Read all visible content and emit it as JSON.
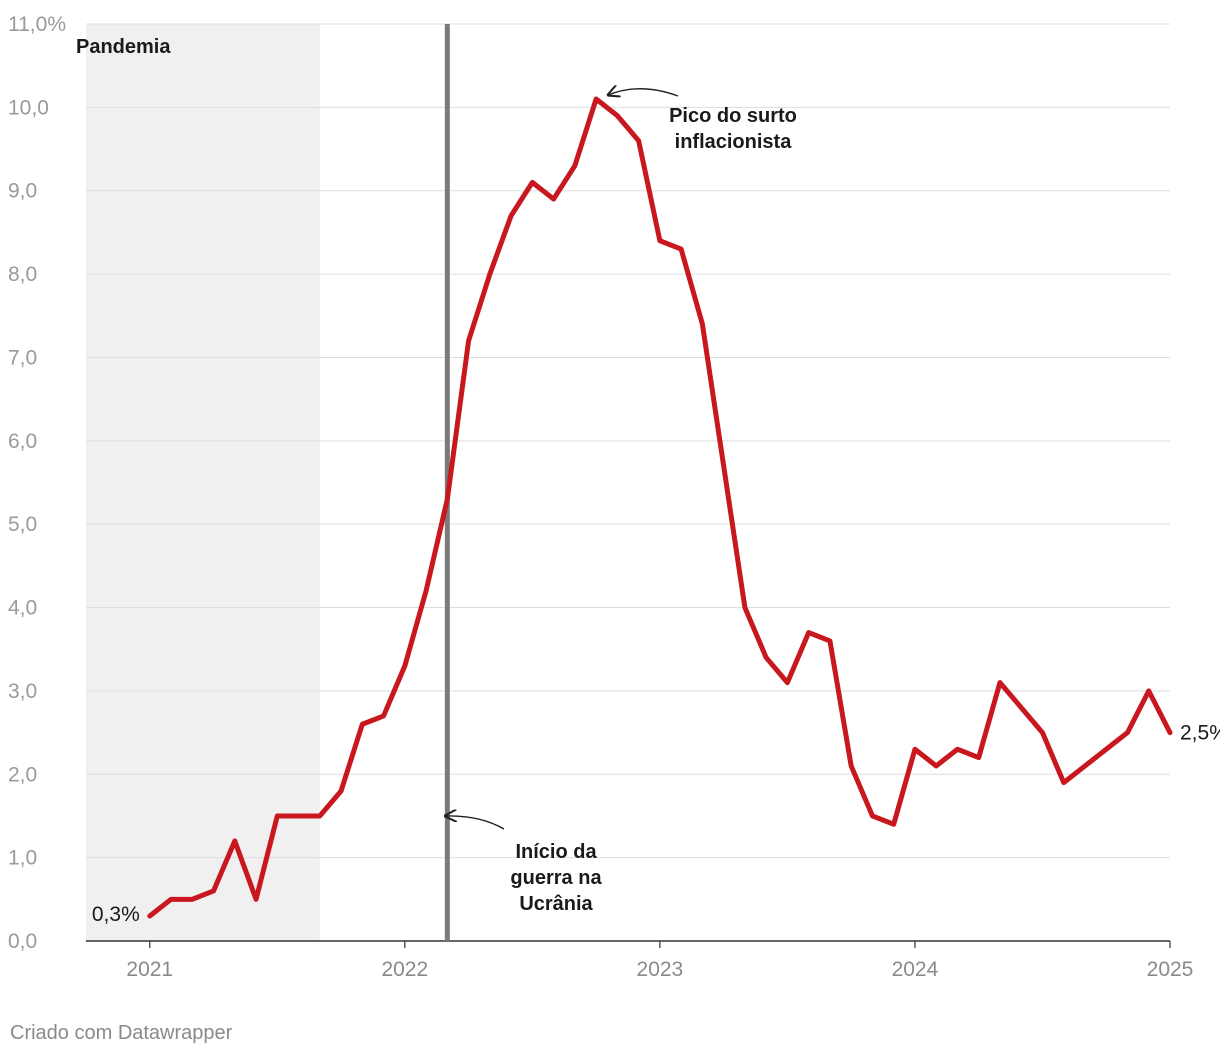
{
  "chart_data": {
    "type": "line",
    "title": "",
    "xlabel": "",
    "ylabel": "",
    "ylim": [
      0,
      11
    ],
    "xlim": [
      "2020-10",
      "2025-01"
    ],
    "yticks": [
      0,
      1,
      2,
      3,
      4,
      5,
      6,
      7,
      8,
      9,
      10,
      11
    ],
    "ytick_labels": [
      "0,0",
      "1,0",
      "2,0",
      "3,0",
      "4,0",
      "5,0",
      "6,0",
      "7,0",
      "8,0",
      "9,0",
      "10,0",
      "11,0%"
    ],
    "xticks": [
      "2021",
      "2022",
      "2023",
      "2024",
      "2025"
    ],
    "grid": true,
    "line_color": "#c8171e",
    "series": [
      {
        "x": [
          "2021-01",
          "2021-02",
          "2021-03",
          "2021-04",
          "2021-05",
          "2021-06",
          "2021-07",
          "2021-08",
          "2021-09",
          "2021-10",
          "2021-11",
          "2021-12",
          "2022-01",
          "2022-02",
          "2022-03",
          "2022-04",
          "2022-05",
          "2022-06",
          "2022-07",
          "2022-08",
          "2022-09",
          "2022-10",
          "2022-11",
          "2022-12",
          "2023-01",
          "2023-02",
          "2023-03",
          "2023-04",
          "2023-05",
          "2023-06",
          "2023-07",
          "2023-08",
          "2023-09",
          "2023-10",
          "2023-11",
          "2023-12",
          "2024-01",
          "2024-02",
          "2024-03",
          "2024-04",
          "2024-05",
          "2024-06",
          "2024-07",
          "2024-08",
          "2024-09",
          "2024-10",
          "2024-11",
          "2024-12"
        ],
        "values": [
          0.3,
          0.5,
          0.5,
          0.6,
          1.2,
          0.5,
          1.5,
          1.5,
          1.5,
          1.8,
          2.6,
          2.7,
          3.3,
          4.2,
          5.3,
          7.2,
          8.0,
          8.7,
          9.1,
          8.9,
          9.3,
          10.1,
          9.9,
          9.6,
          8.4,
          8.3,
          7.4,
          5.7,
          4.0,
          3.4,
          3.1,
          3.7,
          3.6,
          2.1,
          1.5,
          1.4,
          2.3,
          2.1,
          2.3,
          2.2,
          3.1,
          2.8,
          2.5,
          1.9,
          2.1,
          2.3,
          2.5,
          3.0
        ]
      }
    ],
    "extra_point": {
      "x": "2025-01",
      "value": 2.5
    },
    "start_label": "0,3%",
    "end_label": "2,5%",
    "shaded_region": {
      "label": "Pandemia",
      "from": "2020-10",
      "to": "2021-09",
      "color": "#f0f0f0"
    },
    "vertical_line": {
      "x": "2022-03",
      "color": "#7a7a7a"
    },
    "annotations": [
      {
        "lines": [
          "Pico do surto",
          "inflacionista"
        ],
        "target_x": "2022-10",
        "target_value": 10.1
      },
      {
        "lines": [
          "Início da",
          "guerra na",
          "Ucrânia"
        ],
        "target_x": "2022-03",
        "target_value": 1.5
      }
    ]
  },
  "credit": "Criado com Datawrapper"
}
